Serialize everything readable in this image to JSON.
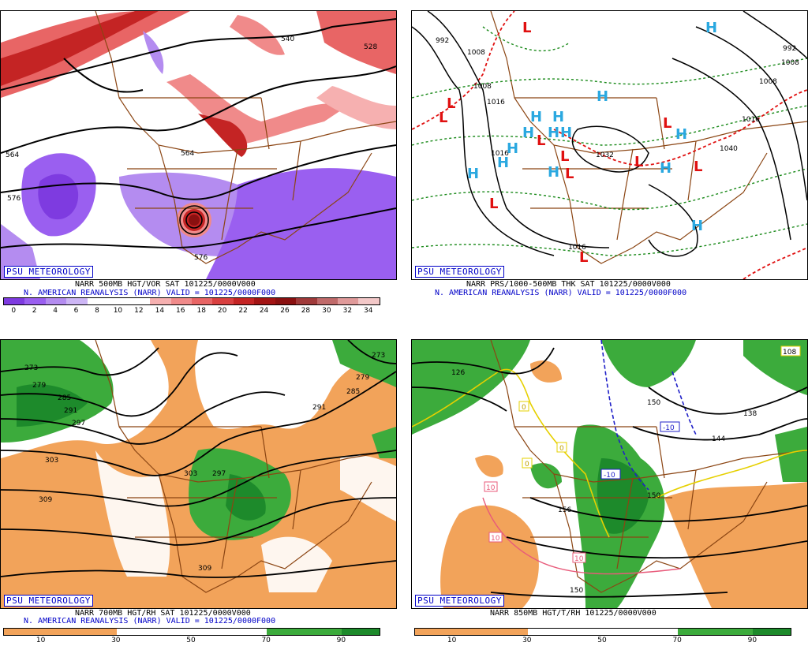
{
  "panels": [
    {
      "id": "p1",
      "badge": "PSU METEOROLOGY",
      "caption1": "NARR 500MB HGT/VOR SAT 101225/0000V000",
      "caption2": "N. AMERICAN REANALYSIS (NARR) VALID = 101225/0000F000",
      "colorbar_ticks": [
        "0",
        "2",
        "4",
        "6",
        "8",
        "10",
        "12",
        "14",
        "16",
        "18",
        "20",
        "22",
        "24",
        "26",
        "28",
        "30",
        "32",
        "34"
      ],
      "colorbar_colors": [
        "#7e3be0",
        "#9a5ff0",
        "#b48cf0",
        "#cdb6f5",
        "#ffffff",
        "#ffffff",
        "#ffffff",
        "#f6b0b0",
        "#f08a8a",
        "#e86565",
        "#d94040",
        "#c42424",
        "#a31414",
        "#8a1010",
        "#a03a3a",
        "#c06a6a",
        "#e09a9a",
        "#f3c8c8"
      ],
      "contour_labels": [
        "540",
        "528",
        "564",
        "564",
        "576",
        "576"
      ]
    },
    {
      "id": "p2",
      "badge": "PSU METEOROLOGY",
      "caption1": "NARR PRS/1000-500MB THK SAT 101225/0000V000",
      "caption2": "N. AMERICAN REANALYSIS (NARR) VALID = 101225/0000F000",
      "contour_labels": [
        "992",
        "1008",
        "1008",
        "1016",
        "1016",
        "1032",
        "1040",
        "992",
        "1008",
        "1008",
        "1016",
        "1016"
      ],
      "highs": [
        "H",
        "H",
        "H",
        "H",
        "H",
        "H",
        "H",
        "H",
        "H",
        "H",
        "H",
        "H",
        "H",
        "H"
      ],
      "lows": [
        "L",
        "L",
        "L",
        "L",
        "L",
        "L",
        "L",
        "L",
        "L",
        "L",
        "L"
      ]
    },
    {
      "id": "p3",
      "badge": "PSU METEOROLOGY",
      "caption1": "NARR 700MB HGT/RH SAT 101225/0000V000",
      "caption2": "N. AMERICAN REANALYSIS (NARR) VALID = 101225/0000F000",
      "colorbar_ticks": [
        "10",
        "30",
        "50",
        "70",
        "90"
      ],
      "contour_labels": [
        "273",
        "279",
        "285",
        "291",
        "297",
        "303",
        "309",
        "303",
        "297",
        "291",
        "285",
        "279",
        "273",
        "309"
      ]
    },
    {
      "id": "p4",
      "badge": "PSU METEOROLOGY",
      "caption1": "NARR 850MB HGT/T/RH 101225/0000V000",
      "colorbar_ticks": [
        "10",
        "30",
        "50",
        "70",
        "90"
      ],
      "contour_labels": [
        "126",
        "150",
        "138",
        "144",
        "156",
        "150",
        "150",
        "-10",
        "-10",
        "10",
        "10",
        "10",
        "0",
        "0",
        "0",
        "108"
      ]
    }
  ],
  "colors": {
    "dry": "#f2a35a",
    "moist": "#3cab3c",
    "moist_dark": "#1d8a2b",
    "border": "#8b4513",
    "low": "#e01010",
    "high": "#2aa8e0",
    "thickness": "#1a8a1a"
  }
}
